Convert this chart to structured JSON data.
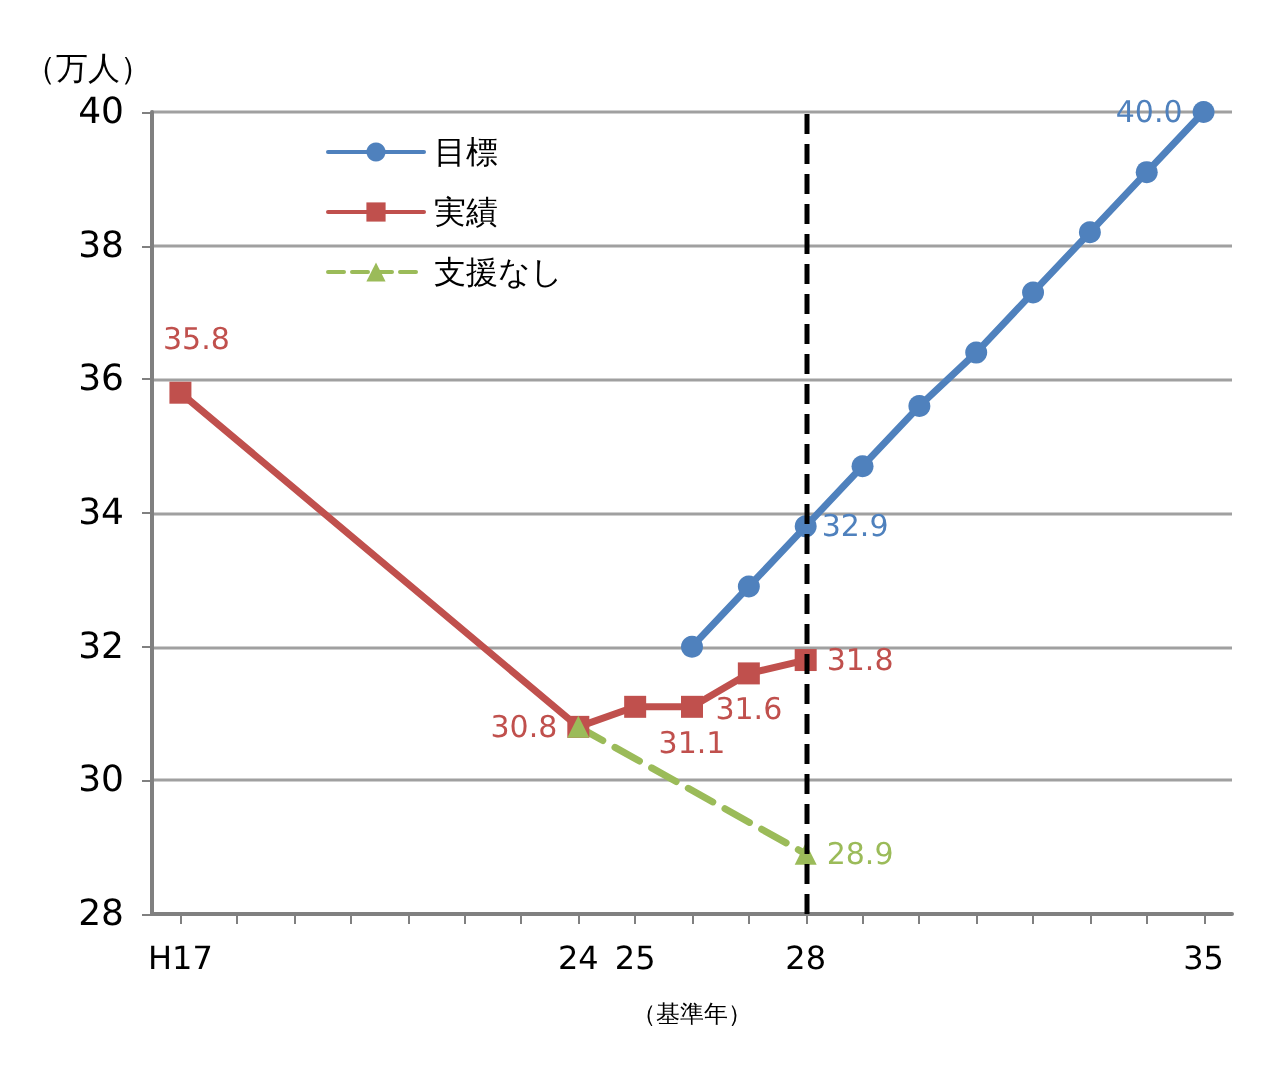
{
  "chart_data": {
    "type": "line",
    "ylabel": "（万人）",
    "xlabel": "（基準年）",
    "categories": [
      "H17",
      null,
      null,
      null,
      null,
      null,
      null,
      "24",
      "25",
      null,
      null,
      "28",
      null,
      null,
      null,
      null,
      null,
      null,
      "35"
    ],
    "ylim": [
      28,
      40
    ],
    "yticks": [
      28,
      30,
      32,
      34,
      36,
      38,
      40
    ],
    "grid": "y",
    "legend": "top left",
    "series": [
      {
        "name": "目標",
        "color": "#4f81bd",
        "marker": "circle",
        "line_style": "solid",
        "values": [
          null,
          null,
          null,
          null,
          null,
          null,
          null,
          null,
          null,
          32.0,
          32.9,
          33.8,
          34.7,
          35.6,
          36.4,
          37.3,
          38.2,
          39.1,
          40.0
        ],
        "value_labels": [
          null,
          null,
          null,
          null,
          null,
          null,
          null,
          null,
          null,
          null,
          null,
          null,
          null,
          null,
          null,
          null,
          null,
          null,
          "40.0"
        ]
      },
      {
        "name": "実績",
        "color": "#c0504d",
        "marker": "square",
        "line_style": "solid",
        "values": [
          35.8,
          null,
          null,
          null,
          null,
          null,
          null,
          30.8,
          31.1,
          31.1,
          31.6,
          31.8,
          null,
          null,
          null,
          null,
          null,
          null,
          null
        ],
        "value_labels": [
          "35.8",
          null,
          null,
          null,
          null,
          null,
          null,
          "30.8",
          null,
          "31.1",
          "31.6",
          "31.8",
          null,
          null,
          null,
          null,
          null,
          null,
          null
        ]
      },
      {
        "name": "支援なし",
        "color": "#9bbb59",
        "marker": "triangle",
        "line_style": "dashed",
        "values": [
          null,
          null,
          null,
          null,
          null,
          null,
          null,
          30.8,
          null,
          null,
          null,
          28.9,
          null,
          null,
          null,
          null,
          null,
          null,
          null
        ],
        "value_labels": [
          null,
          null,
          null,
          null,
          null,
          null,
          null,
          null,
          null,
          null,
          null,
          "28.9",
          null,
          null,
          null,
          null,
          null,
          null,
          null
        ]
      }
    ],
    "annotations": [
      {
        "text": "32.9",
        "x": "28",
        "y": 33.8
      }
    ],
    "ref_lines": [
      {
        "axis": "x",
        "value": "28",
        "color": "#000000",
        "line_style": "dashed"
      }
    ]
  }
}
